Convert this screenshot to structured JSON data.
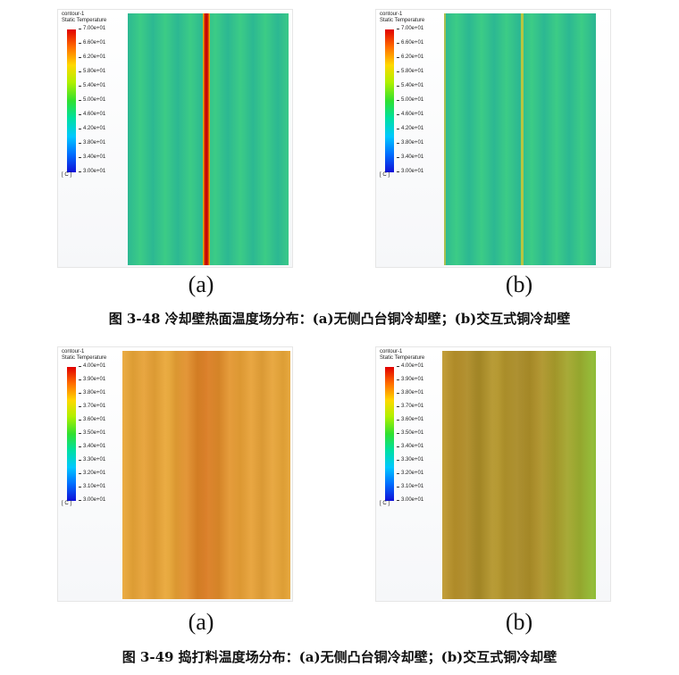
{
  "figure_48": {
    "caption": "图 3-48 冷却壁热面温度场分布：(a)无侧凸台铜冷却壁；(b)交互式铜冷却壁",
    "panels": [
      {
        "label": "(a)",
        "legend": {
          "line1": "contour-1",
          "line2": "Static Temperature",
          "unit": "[ C ]",
          "ticks": [
            "7.00e+01",
            "6.60e+01",
            "6.20e+01",
            "5.80e+01",
            "5.40e+01",
            "5.00e+01",
            "4.60e+01",
            "4.20e+01",
            "3.80e+01",
            "3.40e+01",
            "3.00e+01"
          ]
        }
      },
      {
        "label": "(b)",
        "legend": {
          "line1": "contour-1",
          "line2": "Static Temperature",
          "unit": "[ C ]",
          "ticks": [
            "7.00e+01",
            "6.60e+01",
            "6.20e+01",
            "5.80e+01",
            "5.40e+01",
            "5.00e+01",
            "4.60e+01",
            "4.20e+01",
            "3.80e+01",
            "3.40e+01",
            "3.00e+01"
          ]
        }
      }
    ]
  },
  "figure_49": {
    "caption": "图 3-49 捣打料温度场分布：(a)无侧凸台铜冷却壁；(b)交互式铜冷却壁",
    "panels": [
      {
        "label": "(a)",
        "legend": {
          "line1": "contour-1",
          "line2": "Static Temperature",
          "unit": "[ C ]",
          "ticks": [
            "4.00e+01",
            "3.90e+01",
            "3.80e+01",
            "3.70e+01",
            "3.60e+01",
            "3.50e+01",
            "3.40e+01",
            "3.30e+01",
            "3.20e+01",
            "3.10e+01",
            "3.00e+01"
          ]
        }
      },
      {
        "label": "(b)",
        "legend": {
          "line1": "contour-1",
          "line2": "Static Temperature",
          "unit": "[ C ]",
          "ticks": [
            "4.00e+01",
            "3.90e+01",
            "3.80e+01",
            "3.70e+01",
            "3.60e+01",
            "3.50e+01",
            "3.40e+01",
            "3.30e+01",
            "3.20e+01",
            "3.10e+01",
            "3.00e+01"
          ]
        }
      }
    ]
  },
  "colors": {
    "fig48_field": "#2fbf8a",
    "fig48_stripe_light": "#3dcf86",
    "fig48_hot_line": "#d11a0a",
    "fig49a_field": "#e8a032",
    "fig49a_hot": "#e07a20",
    "fig49b_field": "#b89a2a",
    "fig49b_edge": "#8fb82a"
  }
}
